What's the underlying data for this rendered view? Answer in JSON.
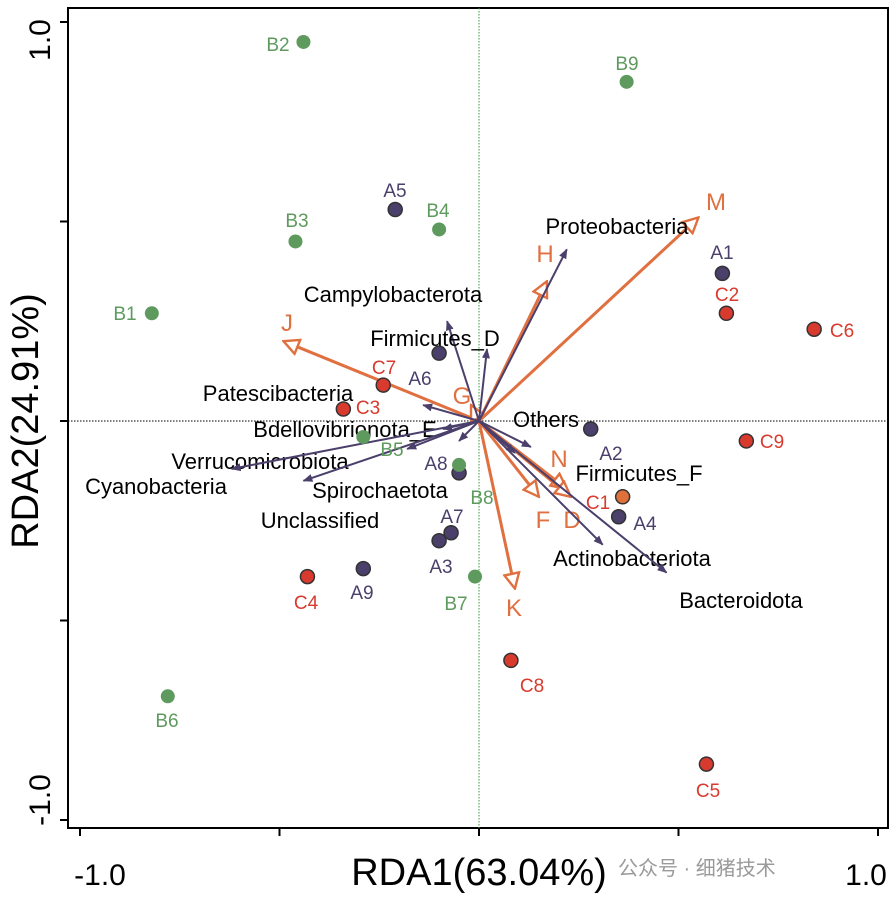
{
  "chart_data": {
    "type": "scatter",
    "subtype": "RDA biplot",
    "xlabel": "RDA1(63.04%)",
    "ylabel": "RDA2(24.91%)",
    "xlim": [
      -1.0,
      1.0
    ],
    "ylim": [
      -1.0,
      1.0
    ],
    "x_tick_labels": [
      "-1.0",
      "1.0"
    ],
    "y_tick_labels": [
      "1.0",
      "-1.0"
    ],
    "grid": false,
    "colors": {
      "A": "#4b3f6b",
      "B": "#5e9a5e",
      "C": "#d93a2e",
      "C1": "#e0703a",
      "env": "#e07040",
      "species": "#4b3f6b",
      "axis": "#000000",
      "zero_v": "#3a9a3a"
    },
    "samples": [
      {
        "name": "A1",
        "group": "A",
        "x": 0.61,
        "y": 0.37
      },
      {
        "name": "A2",
        "group": "A",
        "x": 0.28,
        "y": -0.02
      },
      {
        "name": "A3",
        "group": "A",
        "x": -0.1,
        "y": -0.3
      },
      {
        "name": "A4",
        "group": "A",
        "x": 0.35,
        "y": -0.24
      },
      {
        "name": "A5",
        "group": "A",
        "x": -0.21,
        "y": 0.53
      },
      {
        "name": "A6",
        "group": "A",
        "x": -0.1,
        "y": 0.17
      },
      {
        "name": "A7",
        "group": "A",
        "x": -0.07,
        "y": -0.28
      },
      {
        "name": "A8",
        "group": "A",
        "x": -0.05,
        "y": -0.13
      },
      {
        "name": "A9",
        "group": "A",
        "x": -0.29,
        "y": -0.37
      },
      {
        "name": "B1",
        "group": "B",
        "x": -0.82,
        "y": 0.27
      },
      {
        "name": "B2",
        "group": "B",
        "x": -0.44,
        "y": 0.95
      },
      {
        "name": "B3",
        "group": "B",
        "x": -0.46,
        "y": 0.45
      },
      {
        "name": "B4",
        "group": "B",
        "x": -0.1,
        "y": 0.48
      },
      {
        "name": "B5",
        "group": "B",
        "x": -0.29,
        "y": -0.04
      },
      {
        "name": "B6",
        "group": "B",
        "x": -0.78,
        "y": -0.69
      },
      {
        "name": "B7",
        "group": "B",
        "x": -0.01,
        "y": -0.39
      },
      {
        "name": "B8",
        "group": "B",
        "x": -0.05,
        "y": -0.11
      },
      {
        "name": "B9",
        "group": "B",
        "x": 0.37,
        "y": 0.85
      },
      {
        "name": "C1",
        "group": "C1",
        "x": 0.36,
        "y": -0.19
      },
      {
        "name": "C2",
        "group": "C",
        "x": 0.62,
        "y": 0.27
      },
      {
        "name": "C3",
        "group": "C",
        "x": -0.34,
        "y": 0.03
      },
      {
        "name": "C4",
        "group": "C",
        "x": -0.43,
        "y": -0.39
      },
      {
        "name": "C5",
        "group": "C",
        "x": 0.57,
        "y": -0.86
      },
      {
        "name": "C6",
        "group": "C",
        "x": 0.84,
        "y": 0.23
      },
      {
        "name": "C7",
        "group": "C",
        "x": -0.24,
        "y": 0.09
      },
      {
        "name": "C8",
        "group": "C",
        "x": 0.08,
        "y": -0.6
      },
      {
        "name": "C9",
        "group": "C",
        "x": 0.67,
        "y": -0.05
      }
    ],
    "env_arrows": [
      {
        "name": "M",
        "x": 0.55,
        "y": 0.51
      },
      {
        "name": "H",
        "x": 0.17,
        "y": 0.35
      },
      {
        "name": "J",
        "x": -0.49,
        "y": 0.2
      },
      {
        "name": "G",
        "x": -0.02,
        "y": 0.04
      },
      {
        "name": "N",
        "x": 0.22,
        "y": -0.17
      },
      {
        "name": "F",
        "x": 0.15,
        "y": -0.19
      },
      {
        "name": "D",
        "x": 0.23,
        "y": -0.19
      },
      {
        "name": "K",
        "x": 0.09,
        "y": -0.42
      }
    ],
    "species_arrows": [
      {
        "name": "Proteobacteria",
        "x": 0.22,
        "y": 0.43
      },
      {
        "name": "Campylobacterota",
        "x": -0.08,
        "y": 0.25
      },
      {
        "name": "Firmicutes_D",
        "x": 0.02,
        "y": 0.18
      },
      {
        "name": "Patescibacteria",
        "x": -0.14,
        "y": 0.04
      },
      {
        "name": "Bdellovibrionota_E",
        "x": -0.09,
        "y": -0.02
      },
      {
        "name": "Others",
        "x": 0.13,
        "y": -0.065
      },
      {
        "name": "Verrucomicrobiota",
        "x": -0.18,
        "y": -0.07
      },
      {
        "name": "Cyanobacteria",
        "x": -0.62,
        "y": -0.12
      },
      {
        "name": "Spirochaetota",
        "x": -0.05,
        "y": -0.05
      },
      {
        "name": "Unclassified",
        "x": -0.44,
        "y": -0.15
      },
      {
        "name": "Firmicutes_F",
        "x": 0.09,
        "y": -0.08
      },
      {
        "name": "Actinobacteriota",
        "x": 0.31,
        "y": -0.31
      },
      {
        "name": "Bacteroidota",
        "x": 0.47,
        "y": -0.38
      }
    ]
  },
  "watermark": "公众号 · 细猪技术"
}
